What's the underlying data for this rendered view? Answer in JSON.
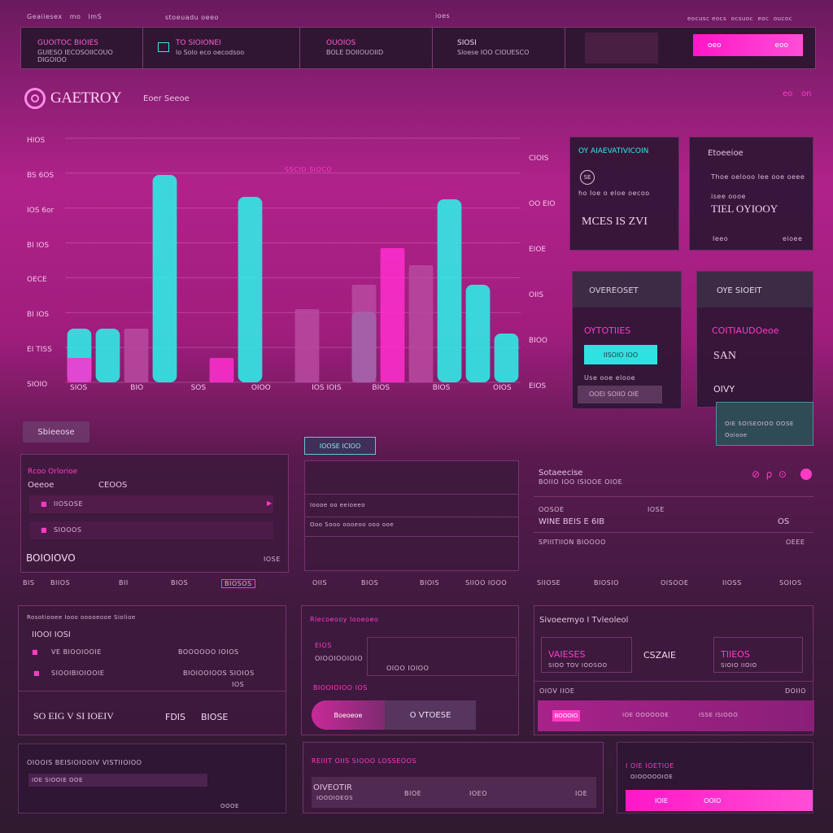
{
  "header": {
    "top_left": [
      "Geaiiesex",
      "mo",
      "lmS"
    ],
    "top_mid": "stoeuadu oeeo",
    "top_center": "ioes",
    "top_right": [
      "eocusc eocs",
      "ocsuoc",
      "eoc",
      "oucoc"
    ]
  },
  "topbar": {
    "segments": [
      {
        "t1": "GUOITOC BIOIES",
        "t2": "GUIESO IECOSOIICOUO DIGOIOO"
      },
      {
        "t1": "TO SIOIONEI",
        "t2": "lo Solo eco   oecodsoo"
      },
      {
        "t1": "OUOIOS",
        "t2": "BOLE DOIIOUOIID"
      },
      {
        "t1": "SIOSI",
        "t2": "Sloese IOO CIOUESCO"
      }
    ],
    "action_label": "oeo",
    "action_label2": "eoo"
  },
  "brand": {
    "logo_text": "GAETROY",
    "subtitle": "Eoer Seeoe",
    "right_icons": [
      "eo",
      "on"
    ]
  },
  "chart_data": {
    "type": "bar",
    "y_labels": [
      "HIOS",
      "BS 6OS",
      "IOS 6or",
      "BI IOS",
      "OECE",
      "BI IOS",
      "EI TISS",
      "SIOIO"
    ],
    "right_labels": [
      "CIOIS",
      "OO EIO",
      "EIOE",
      "OIIS",
      "BIOO",
      "EIOS"
    ],
    "x_labels": [
      "SIOS",
      "BIO",
      "SOS",
      "OIOO",
      "IOS IOIS",
      "BIOS",
      "BIOS",
      "OIOS"
    ],
    "annotation": "SSCIO SIOCO",
    "series": [
      {
        "color": "#30eae6",
        "values": [
          22,
          22,
          0,
          85,
          0,
          0,
          76,
          0,
          0,
          0,
          29,
          0,
          0,
          75,
          40,
          20
        ]
      },
      {
        "color": "#ff2fcf",
        "values": [
          10,
          0,
          0,
          0,
          0,
          10,
          0,
          0,
          0,
          0,
          0,
          55,
          0,
          0,
          0,
          0
        ]
      },
      {
        "color": "#b94aa0",
        "values": [
          0,
          0,
          22,
          0,
          0,
          0,
          0,
          0,
          30,
          0,
          40,
          0,
          48,
          0,
          0,
          0
        ]
      }
    ],
    "ylim": [
      0,
      100
    ]
  },
  "cards": {
    "c1": {
      "title": "OY AIAEVATIVICOIN",
      "line1": "SE",
      "line2": "ho Ioe o eloe oecoo",
      "value": "MCES IS ZVI"
    },
    "c2": {
      "title": "Etoeeioe",
      "line1": "Thoe oelooo Iee ooe oeee",
      "line2": "isee oooe",
      "value": "TIEL OYIOOY",
      "foot1": "Ieeo",
      "foot2": "eioee"
    },
    "c3": {
      "header": "OVEREOSET",
      "title": "OYTOTIIES",
      "btn": "IISOIO IOO",
      "foot": "Use ooe elooe",
      "field": "OOEI SOIIO OIE"
    },
    "c4": {
      "header": "OYE SIOEIT",
      "title": "COITIAUDOeoe",
      "value": "SAN",
      "value2": "OIVY"
    },
    "c5": {
      "line1": "OIE SOISEOIOO OOSE",
      "line2": "Ooiooe"
    }
  },
  "lower": {
    "tab_label": "Sbieeose",
    "badge": "IOOSE ICIOO",
    "panelA": {
      "title": "Rcoo Orlorioe",
      "col1": "Oeeoe",
      "col2": "CEOOS",
      "row1": "IIOSOSE",
      "row2": "SIOOOS",
      "big": "BOIOIOVO",
      "foot": "IOSE"
    },
    "panelB": {
      "row1": "Ioooe oo eeioeeo",
      "row2": "Ooo Sooo oooeoo ooo ooe"
    },
    "panelC": {
      "title": "Sotaeecise",
      "sub": "BOIIO IOO ISIOOE OIOE",
      "col1": "OOSOE",
      "col2": "IOSE",
      "row1": "WINE BEIS E 6IB",
      "row1r": "OS",
      "row2": "SPIIITIION BIOOOO",
      "row2r": "OEEE"
    },
    "nav_row": [
      "BIS",
      "BIIOS",
      "BII",
      "BIOS",
      "BIOSOS",
      "OIIS",
      "BIOS",
      "BIOIS",
      "SIIOO IOOO",
      "SIIOSE",
      "BIOSIO",
      "OISOOE",
      "IIOSS",
      "SOIOS"
    ]
  },
  "bottom": {
    "p1": {
      "title": "Rosotiooee Iooo ooooeooe Siolioe",
      "r1": "IIOOI IOSI",
      "r2": "VE BIOOIOOIE",
      "r2r": "BOOOOOO IOIOS",
      "r3": "SIOOIBIOIOOIE",
      "r3r": "BIOIOOIOOS SIOIOS",
      "r3rr": "IOS",
      "big": "SO EIG V SI IOEIV",
      "big2": "FDIS",
      "big3": "BIOSE"
    },
    "p2": {
      "title": "Rlecoeooy Iooeoeo",
      "r1": "EIOS",
      "r2": "OIOOIOOIOIO",
      "r3": "OIOO IOIOO",
      "r4": "BIOOIOIOO IOS",
      "btn1": "Boeoeoe",
      "btn2": "O VTOESE"
    },
    "p3": {
      "title": "Sivoeemyo I Tvleoleol",
      "m1": "VAIESES",
      "m1s": "SIOO TOV IOOSOO",
      "m2": "CSZAIE",
      "m3": "TIIEOS",
      "m3s": "SIOIO IIOIO",
      "r1": "OIOV IIOE",
      "r1r": "DOIIO",
      "btn": "BOOOIO",
      "b2": "IOE OOOOOOE",
      "b3": "ISSE ISIOOO"
    },
    "p4": {
      "title": "OIOOIS BEISIOIOOIV VISTIIOIOO",
      "r1": "IOE SIOOIE OOE",
      "foot": "OOOE"
    },
    "p5": {
      "title": "REIIIT OIIS SIOOO LOSSEOOS",
      "r1": "OIVEOTIR",
      "r1b": "IOOOIOEOS",
      "r2": "BIOE",
      "r3": "IOEO",
      "r4": "IOE"
    },
    "p6": {
      "title": "I OIE IOETIOE",
      "sub": "OIOOOOOIOE",
      "btn": "IOIE",
      "btn2": "OOIO"
    }
  }
}
